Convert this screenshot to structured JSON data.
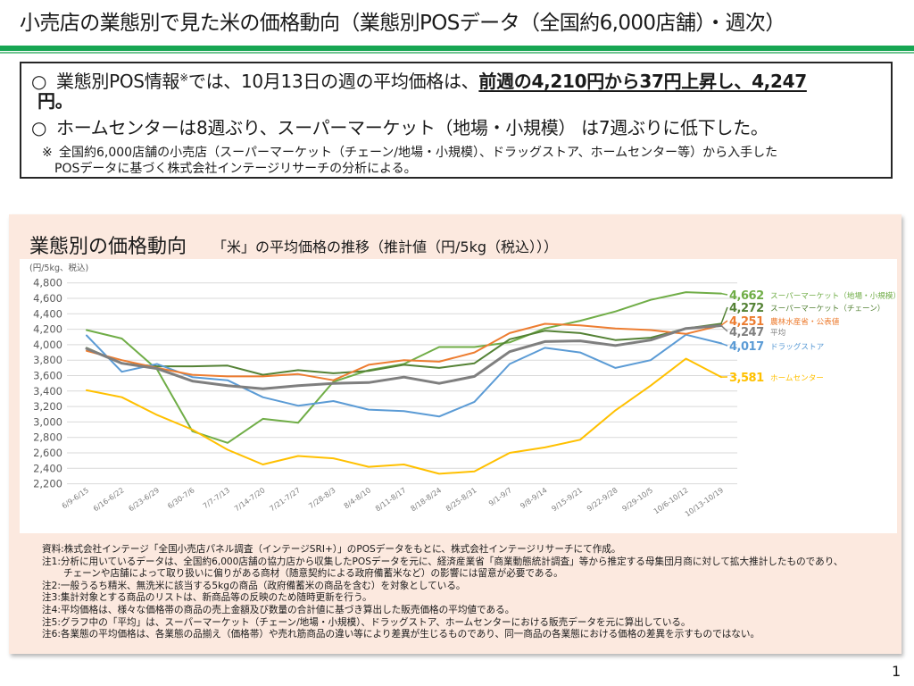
{
  "page": {
    "title": "小売店の業態別で見た米の価格動向（業態別POSデータ（全国約6,000店舗）・週次）",
    "page_number": "1"
  },
  "summary": {
    "bullet1": {
      "marker": "○",
      "text_before": "業態別POS情報",
      "note_ref": "※",
      "text_after": "では、10月13日の週の平均価格は、",
      "highlight": "前週の4,210円から37円上昇し、4,247",
      "highlight_tail": "円。"
    },
    "bullet2": {
      "marker": "○",
      "text": "ホームセンターは8週ぶり、スーパーマーケット（地場・小規模） は7週ぶりに低下した。"
    },
    "note": {
      "marker": "※",
      "line1": "全国約6,000店舗の小売店（スーパーマーケット（チェーン/地場・小規模）、ドラッグストア、ホームセンター等）から入手した",
      "line2": "POSデータに基づく株式会社インテージリサーチの分析による。"
    }
  },
  "panel": {
    "title": "業態別の価格動向",
    "subtitle": "「米」の平均価格の推移（推計値（円/5kg（税込）））"
  },
  "chart_data": {
    "type": "line",
    "title": "「米」の平均価格の推移（推計値（円/5kg（税込）））",
    "xlabel": "",
    "ylabel": "(円/5kg、税込)",
    "ylim": [
      2200,
      4800
    ],
    "ytick_step": 200,
    "yticks": [
      "4,800",
      "4,600",
      "4,400",
      "4,200",
      "4,000",
      "3,800",
      "3,600",
      "3,400",
      "3,200",
      "3,000",
      "2,800",
      "2,600",
      "2,400",
      "2,200"
    ],
    "grid": true,
    "legend": "right (end-of-line labels)",
    "categories": [
      "6/9-6/15",
      "6/16-6/22",
      "6/23-6/29",
      "6/30-7/6",
      "7/7-7/13",
      "7/14-7/20",
      "7/21-7/27",
      "7/28-8/3",
      "8/4-8/10",
      "8/11-8/17",
      "8/18-8/24",
      "8/25-8/31",
      "9/1-9/7",
      "9/8-9/14",
      "9/15-9/21",
      "9/22-9/28",
      "9/29-10/5",
      "10/6-10/12",
      "10/13-10/19"
    ],
    "series": [
      {
        "name": "スーパーマーケット（地場・小規模）",
        "color": "#70ad47",
        "end_label": "4,662",
        "values": [
          4190,
          4080,
          3680,
          2880,
          2730,
          3040,
          2990,
          3520,
          3670,
          3750,
          3970,
          3970,
          4030,
          4210,
          4310,
          4430,
          4580,
          4680,
          4662
        ]
      },
      {
        "name": "スーパーマーケット（チェーン）",
        "color": "#548235",
        "end_label": "4,272",
        "values": [
          3960,
          3760,
          3720,
          3720,
          3730,
          3610,
          3670,
          3630,
          3660,
          3740,
          3700,
          3760,
          4070,
          4180,
          4150,
          4060,
          4090,
          4210,
          4272
        ]
      },
      {
        "name": "農林水産省・公表値",
        "color": "#ed7d31",
        "end_label": "4,251",
        "values": [
          3920,
          3800,
          3700,
          3610,
          3590,
          3590,
          3620,
          3540,
          3740,
          3800,
          3780,
          3900,
          4150,
          4270,
          4250,
          4210,
          4190,
          4140,
          4251
        ]
      },
      {
        "name": "平均",
        "color": "#7f7f7f",
        "end_label": "4,247",
        "values": [
          3950,
          3760,
          3690,
          3530,
          3470,
          3430,
          3470,
          3500,
          3510,
          3580,
          3500,
          3590,
          3910,
          4040,
          4050,
          3990,
          4060,
          4210,
          4247
        ]
      },
      {
        "name": "ドラッグストア",
        "color": "#5b9bd5",
        "end_label": "4,017",
        "values": [
          4120,
          3650,
          3750,
          3580,
          3540,
          3320,
          3210,
          3270,
          3160,
          3140,
          3070,
          3260,
          3750,
          3960,
          3900,
          3700,
          3800,
          4130,
          4017
        ]
      },
      {
        "name": "ホームセンター",
        "color": "#ffc000",
        "end_label": "3,581",
        "values": [
          3410,
          3320,
          3090,
          2900,
          2640,
          2450,
          2560,
          2530,
          2420,
          2450,
          2330,
          2360,
          2600,
          2670,
          2770,
          3150,
          3470,
          3820,
          3581
        ]
      }
    ]
  },
  "footnotes": [
    "資料:株式会社インテージ「全国小売店パネル調査（インテージSRI+）」のPOSデータをもとに、株式会社インテージリサーチにて作成。",
    "注1:分析に用いているデータは、全国約6,000店舗の協力店から収集したPOSデータを元に、経済産業省「商業動態統計調査」等から推定する母集団月商に対して拡大推計したものであり、",
    "チェーンや店舗によって取り扱いに偏りがある商材（随意契約による政府備蓄米など）の影響には留意が必要である。",
    "注2:一般うるち精米、無洗米に該当する5kgの商品（政府備蓄米の商品を含む）を対象としている。",
    "注3:集計対象とする商品のリストは、新商品等の反映のため随時更新を行う。",
    "注4:平均価格は、様々な価格帯の商品の売上金額及び数量の合計値に基づき算出した販売価格の平均値である。",
    "注5:グラフ中の「平均」は、スーパーマーケット（チェーン/地場・小規模）、ドラッグストア、ホームセンターにおける販売データを元に算出している。",
    "注6:各業態の平均価格は、各業態の品揃え（価格帯）や売れ筋商品の違い等により差異が生じるものであり、同一商品の各業態における価格の差異を示すものではない。"
  ]
}
